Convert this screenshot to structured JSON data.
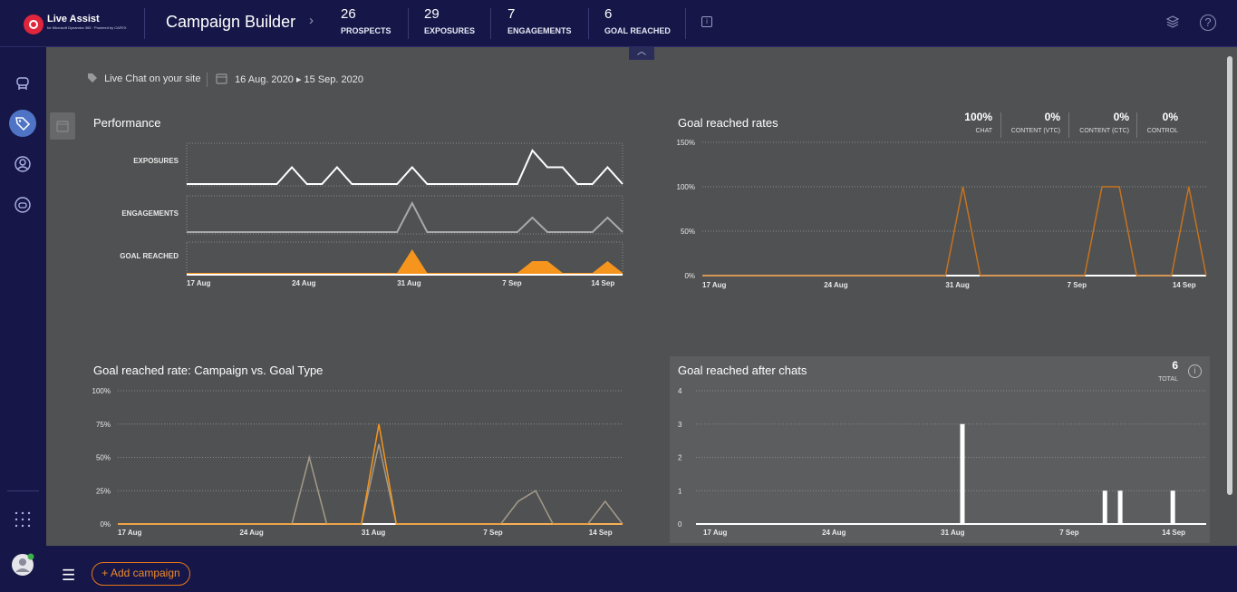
{
  "app": {
    "logo_name": "Live Assist",
    "logo_sub": "for Microsoft Dynamics 365 · Powered by CAFEX",
    "title": "Campaign Builder"
  },
  "stats": [
    {
      "value": "26",
      "label": "PROSPECTS"
    },
    {
      "value": "29",
      "label": "EXPOSURES"
    },
    {
      "value": "7",
      "label": "ENGAGEMENTS"
    },
    {
      "value": "6",
      "label": "GOAL REACHED"
    }
  ],
  "filters": {
    "channel": "Live Chat on your site",
    "date_range": "16 Aug. 2020 ▸ 15 Sep. 2020"
  },
  "performance": {
    "title": "Performance",
    "rows": [
      "EXPOSURES",
      "ENGAGEMENTS",
      "GOAL REACHED"
    ],
    "x_ticks": [
      "17 Aug",
      "24 Aug",
      "31 Aug",
      "7 Sep",
      "14 Sep"
    ]
  },
  "goal_rates": {
    "title": "Goal reached rates",
    "metrics": [
      {
        "value": "100%",
        "label": "CHAT"
      },
      {
        "value": "0%",
        "label": "CONTENT (VTC)"
      },
      {
        "value": "0%",
        "label": "CONTENT (CTC)"
      },
      {
        "value": "0%",
        "label": "CONTROL"
      }
    ],
    "y_ticks": [
      "150%",
      "100%",
      "50%",
      "0%"
    ]
  },
  "campaign_vs_goal": {
    "title": "Goal reached rate: Campaign vs. Goal Type",
    "y_ticks": [
      "100%",
      "75%",
      "50%",
      "25%",
      "0%"
    ]
  },
  "after_chats": {
    "title": "Goal reached after chats",
    "total_value": "6",
    "total_label": "TOTAL",
    "y_ticks": [
      "4",
      "3",
      "2",
      "1",
      "0"
    ]
  },
  "bottom": {
    "add_campaign": "+ Add campaign"
  },
  "colors": {
    "accent": "#f5951d",
    "bg_main": "#505152",
    "nav": "#161748"
  },
  "chart_data": [
    {
      "type": "line",
      "title": "Performance",
      "series": [
        {
          "name": "EXPOSURES",
          "values": [
            0,
            0,
            0,
            0,
            0,
            0,
            0,
            1,
            0,
            0,
            1,
            0,
            0,
            0,
            0,
            1,
            0,
            0,
            0,
            0,
            0,
            0,
            0,
            2,
            1,
            1,
            0,
            0,
            1,
            0
          ]
        },
        {
          "name": "ENGAGEMENTS",
          "values": [
            0,
            0,
            0,
            0,
            0,
            0,
            0,
            0,
            0,
            0,
            0,
            0,
            0,
            0,
            0,
            2,
            0,
            0,
            0,
            0,
            0,
            0,
            0,
            1,
            0,
            0,
            0,
            0,
            1,
            0
          ]
        },
        {
          "name": "GOAL REACHED",
          "values": [
            0,
            0,
            0,
            0,
            0,
            0,
            0,
            0,
            0,
            0,
            0,
            0,
            0,
            0,
            0,
            2,
            0,
            0,
            0,
            0,
            0,
            0,
            0,
            1,
            1,
            0,
            0,
            0,
            1,
            0
          ]
        }
      ]
    },
    {
      "type": "line",
      "title": "Goal reached rates",
      "ylim": [
        0,
        150
      ],
      "series": [
        {
          "values": [
            0,
            0,
            0,
            0,
            0,
            0,
            0,
            0,
            0,
            0,
            0,
            0,
            0,
            0,
            0,
            100,
            0,
            0,
            0,
            0,
            0,
            0,
            0,
            100,
            100,
            0,
            0,
            0,
            100,
            0
          ]
        }
      ]
    },
    {
      "type": "line",
      "title": "Goal reached rate: Campaign vs. Goal Type",
      "ylim": [
        0,
        100
      ],
      "series": [
        {
          "values": [
            0,
            0,
            0,
            0,
            0,
            0,
            0,
            0,
            0,
            0,
            0,
            0,
            0,
            0,
            0,
            75,
            0,
            0,
            0,
            0,
            0,
            0,
            0,
            0,
            0,
            0,
            0,
            0,
            0,
            0
          ]
        },
        {
          "values": [
            0,
            0,
            0,
            0,
            0,
            0,
            0,
            0,
            0,
            0,
            0,
            50,
            0,
            0,
            0,
            60,
            0,
            0,
            0,
            0,
            0,
            0,
            0,
            17,
            25,
            0,
            0,
            0,
            17,
            0
          ]
        }
      ]
    },
    {
      "type": "bar",
      "title": "Goal reached after chats",
      "ylim": [
        0,
        4
      ],
      "x": [
        "1 Sep",
        "10 Sep",
        "11 Sep",
        "14 Sep"
      ],
      "values": [
        3,
        1,
        1,
        1
      ]
    }
  ]
}
